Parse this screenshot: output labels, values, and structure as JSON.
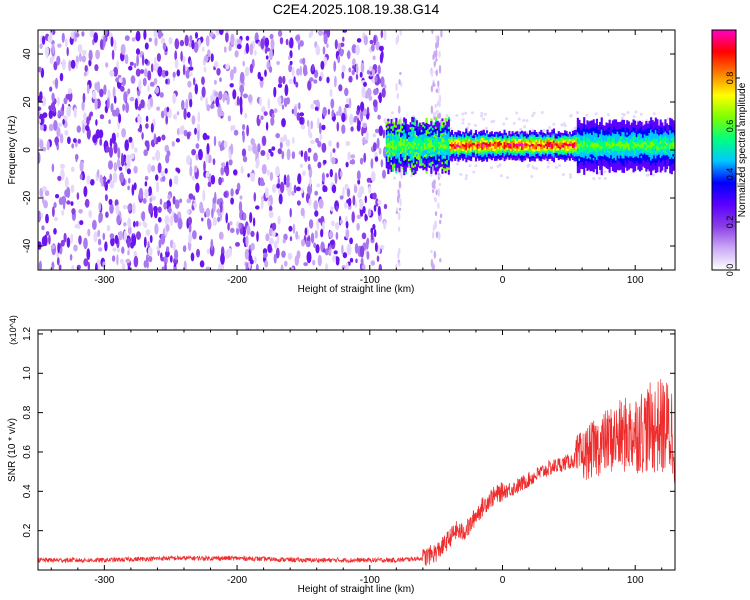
{
  "figure": {
    "title": "C2E4.2025.108.19.38.G14"
  },
  "chart_data": [
    {
      "type": "heatmap",
      "panel": "spectrogram",
      "xlabel": "Height of straight line (km)",
      "ylabel": "Frequency (Hz)",
      "xlim": [
        -350,
        130
      ],
      "ylim": [
        -50,
        50
      ],
      "x_ticks": [
        -300,
        -200,
        -100,
        0,
        100
      ],
      "y_ticks": [
        -40,
        -20,
        0,
        20,
        40
      ],
      "colorbar": {
        "label": "Normalized spectral amplitude",
        "range": [
          0.0,
          1.0
        ],
        "ticks": [
          "0.0",
          "0.2",
          "0.4",
          "0.6",
          "0.8"
        ],
        "tick_values": [
          0.0,
          0.2,
          0.4,
          0.6,
          0.8
        ],
        "colors": [
          "#ffffff",
          "#cbaaf5",
          "#8a3ee6",
          "#5a00ff",
          "#0000ff",
          "#00c8ff",
          "#00ff80",
          "#7cff00",
          "#ffff00",
          "#ff8000",
          "#ff0000",
          "#ff00c8"
        ]
      },
      "regions": [
        {
          "name": "broadband noise",
          "x_range": [
            -350,
            -88
          ],
          "freq_range": [
            -50,
            50
          ],
          "amplitude": 0.1
        },
        {
          "name": "sparse noise",
          "x_range": [
            -88,
            -40
          ],
          "freq_range": [
            -50,
            50
          ],
          "amplitude": 0.03
        },
        {
          "name": "signal band",
          "x_range": [
            -88,
            130
          ],
          "center_freq": 2,
          "bandwidth": [
            -10,
            10
          ],
          "peak_amplitude": 1.0
        }
      ]
    },
    {
      "type": "line",
      "panel": "snr",
      "xlabel": "Height of straight line (km)",
      "ylabel": "SNR (10 * v/v)",
      "y_multiplier": "(x10^4)",
      "xlim": [
        -350,
        130
      ],
      "ylim": [
        0,
        1.22
      ],
      "x_ticks": [
        -300,
        -200,
        -100,
        0,
        100
      ],
      "y_ticks": [
        "0.2",
        "0.4",
        "0.6",
        "0.8",
        "1.0",
        "1.2"
      ],
      "y_tick_values": [
        0.2,
        0.4,
        0.6,
        0.8,
        1.0,
        1.2
      ],
      "color": "#ee2c2c",
      "series": [
        {
          "x": [
            -350,
            -300,
            -250,
            -200,
            -150,
            -100,
            -80,
            -60,
            -50,
            -45,
            -40,
            -35,
            -30,
            -25,
            -20,
            -10,
            0,
            10,
            20,
            30,
            40,
            50,
            55,
            60,
            70,
            80,
            90,
            100,
            110,
            120,
            130
          ],
          "y": [
            0.05,
            0.05,
            0.06,
            0.06,
            0.05,
            0.05,
            0.05,
            0.06,
            0.09,
            0.12,
            0.16,
            0.2,
            0.19,
            0.22,
            0.28,
            0.36,
            0.4,
            0.42,
            0.46,
            0.5,
            0.53,
            0.55,
            0.56,
            0.58,
            0.62,
            0.66,
            0.68,
            0.7,
            0.72,
            0.73,
            0.7
          ]
        }
      ]
    }
  ]
}
